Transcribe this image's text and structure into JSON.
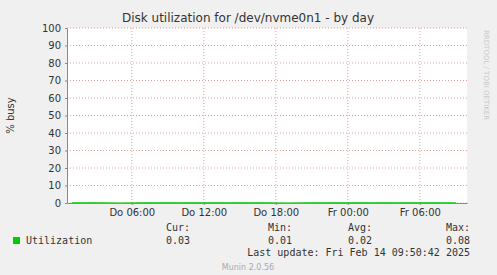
{
  "chart_data": {
    "type": "line",
    "title": "Disk utilization for /dev/nvme0n1 - by day",
    "y_label": "% busy",
    "x": [
      1,
      3,
      5,
      7,
      9,
      11,
      13,
      15,
      17,
      19,
      21,
      23,
      25,
      27,
      29,
      31,
      33
    ],
    "series": [
      {
        "name": "Utilization",
        "color": "#00cc00",
        "values": [
          0.02,
          0.02,
          0.01,
          0.02,
          0.03,
          0.02,
          0.02,
          0.08,
          0.02,
          0.01,
          0.02,
          0.02,
          0.03,
          0.02,
          0.02,
          0.02,
          0.03
        ],
        "stats": [
          0.03,
          0.01,
          0.02,
          0.08
        ]
      }
    ],
    "legend_columns": [
      "Cur:",
      "Min:",
      "Avg:",
      "Max:"
    ],
    "xlim": [
      0.6,
      33.93
    ],
    "xticks": [
      {
        "value": 6,
        "label": "Do 06:00"
      },
      {
        "value": 12,
        "label": "Do 12:00"
      },
      {
        "value": 18,
        "label": "Do 18:00"
      },
      {
        "value": 24,
        "label": "Fr 00:00"
      },
      {
        "value": 30,
        "label": "Fr 06:00"
      }
    ],
    "ylim": [
      0,
      100
    ],
    "yticks": [
      0,
      10,
      20,
      30,
      40,
      50,
      60,
      70,
      80,
      90,
      100
    ],
    "grid": true,
    "footer": "Last update: Fri Feb 14 09:50:42 2025",
    "watermark": "RRDTOOL / TOBI OETIKER",
    "credit": "Munin 2.0.56"
  }
}
